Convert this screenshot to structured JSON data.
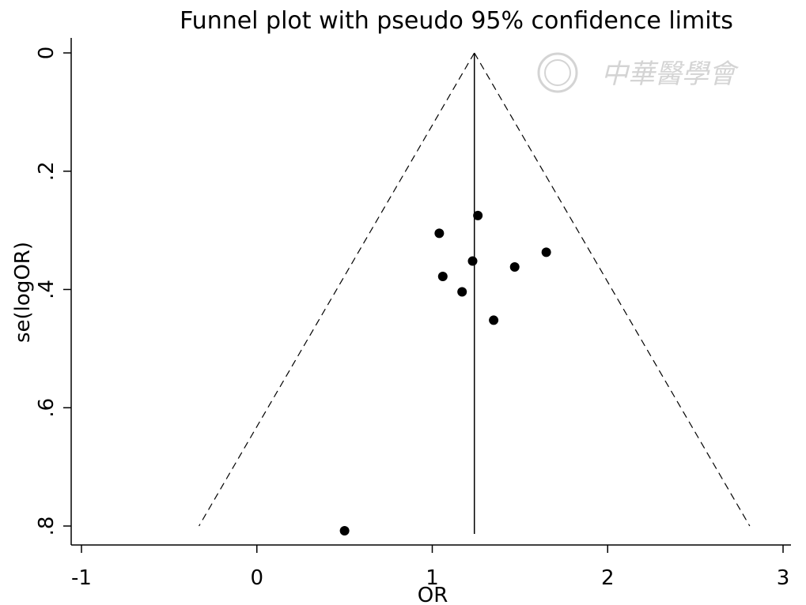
{
  "chart_data": {
    "type": "scatter",
    "title": "Funnel plot with pseudo 95% confidence limits",
    "xlabel": "OR",
    "ylabel": "se(logOR)",
    "xlim": [
      -1,
      3
    ],
    "ylim": [
      0,
      0.8
    ],
    "y_reversed": true,
    "x_ticks": [
      -1,
      0,
      1,
      2,
      3
    ],
    "x_tick_labels": [
      "-1",
      "0",
      "1",
      "2",
      "3"
    ],
    "y_ticks": [
      0,
      0.2,
      0.4,
      0.6,
      0.8
    ],
    "y_tick_labels": [
      "0",
      ".2",
      ".4",
      ".6",
      ".8"
    ],
    "grid": false,
    "legend": "none",
    "pooled_estimate": 1.24,
    "confidence_limits": {
      "left": [
        [
          1.24,
          0
        ],
        [
          -0.33,
          0.8
        ]
      ],
      "right": [
        [
          1.24,
          0
        ],
        [
          2.81,
          0.8
        ]
      ]
    },
    "points": [
      {
        "x": 1.26,
        "y": 0.275
      },
      {
        "x": 1.04,
        "y": 0.305
      },
      {
        "x": 1.65,
        "y": 0.337
      },
      {
        "x": 1.23,
        "y": 0.352
      },
      {
        "x": 1.47,
        "y": 0.362
      },
      {
        "x": 1.06,
        "y": 0.378
      },
      {
        "x": 1.17,
        "y": 0.404
      },
      {
        "x": 1.35,
        "y": 0.452
      },
      {
        "x": 0.5,
        "y": 0.808
      }
    ],
    "colors": {
      "points": "#000000",
      "lines": "#000000"
    }
  },
  "watermark": {
    "text": "中華醫學會"
  }
}
